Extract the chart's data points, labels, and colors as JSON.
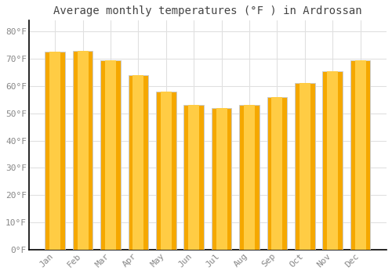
{
  "title": "Average monthly temperatures (°F ) in Ardrossan",
  "months": [
    "Jan",
    "Feb",
    "Mar",
    "Apr",
    "May",
    "Jun",
    "Jul",
    "Aug",
    "Sep",
    "Oct",
    "Nov",
    "Dec"
  ],
  "values": [
    72.5,
    73.0,
    69.5,
    64.0,
    58.0,
    53.0,
    52.0,
    53.0,
    56.0,
    61.0,
    65.5,
    69.5
  ],
  "bar_color_center": "#FFCC44",
  "bar_color_edge": "#F5A800",
  "bar_border_color": "#CCCCCC",
  "background_color": "#FFFFFF",
  "grid_color": "#E0E0E0",
  "ytick_labels": [
    "0°F",
    "10°F",
    "20°F",
    "30°F",
    "40°F",
    "50°F",
    "60°F",
    "70°F",
    "80°F"
  ],
  "ytick_values": [
    0,
    10,
    20,
    30,
    40,
    50,
    60,
    70,
    80
  ],
  "ylim": [
    0,
    84
  ],
  "title_fontsize": 10,
  "tick_fontsize": 8,
  "tick_color": "#888888",
  "title_color": "#444444",
  "axis_color": "#000000",
  "bar_width": 0.72
}
